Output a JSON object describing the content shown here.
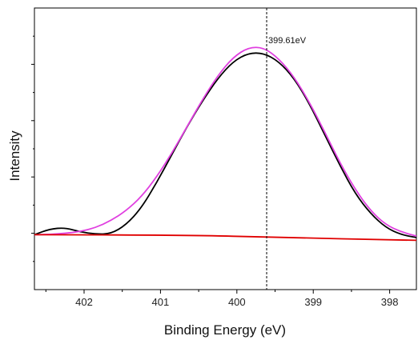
{
  "chart_data": {
    "type": "line",
    "title": "",
    "xlabel": "Binding Energy (eV)",
    "ylabel": "Intensity",
    "x_reversed": true,
    "xlim": [
      402.65,
      397.65
    ],
    "ylim": [
      0,
      100
    ],
    "x_ticks": [
      402,
      401,
      400,
      399,
      398
    ],
    "x_tick_labels": [
      "402",
      "401",
      "400",
      "399",
      "398"
    ],
    "y_ticks_visible_labels": false,
    "grid": false,
    "legend": "none",
    "series": [
      {
        "color": "#000000",
        "x": [
          402.65,
          402.45,
          402.25,
          402.05,
          401.85,
          401.65,
          401.45,
          401.25,
          401.05,
          400.85,
          400.65,
          400.45,
          400.25,
          400.05,
          399.85,
          399.65,
          399.45,
          399.25,
          399.05,
          398.85,
          398.65,
          398.45,
          398.25,
          398.05,
          397.85,
          397.65
        ],
        "y": [
          19.5,
          21.5,
          22.0,
          20.5,
          19.7,
          19.8,
          23.0,
          29.0,
          38.0,
          48.0,
          58.0,
          67.0,
          75.0,
          81.0,
          84.0,
          84.0,
          81.0,
          75.0,
          66.0,
          55.0,
          44.0,
          34.0,
          27.0,
          22.0,
          19.5,
          18.5
        ]
      },
      {
        "color": "#e040e0",
        "x": [
          402.65,
          402.45,
          402.25,
          402.05,
          401.85,
          401.65,
          401.45,
          401.25,
          401.05,
          400.85,
          400.65,
          400.45,
          400.25,
          400.05,
          399.85,
          399.65,
          399.45,
          399.25,
          399.05,
          398.85,
          398.65,
          398.45,
          398.25,
          398.05,
          397.85,
          397.65
        ],
        "y": [
          19.5,
          19.6,
          20.0,
          20.6,
          22.0,
          24.5,
          28.0,
          33.0,
          40.0,
          48.5,
          58.0,
          67.5,
          76.0,
          82.5,
          86.0,
          86.0,
          82.0,
          75.5,
          66.5,
          56.0,
          45.0,
          35.5,
          28.0,
          23.0,
          20.5,
          19.0
        ]
      },
      {
        "color": "#e00000",
        "x": [
          402.65,
          400.5,
          399.6,
          397.65
        ],
        "y": [
          19.5,
          19.3,
          18.6,
          17.5
        ]
      }
    ],
    "annotations": [
      {
        "type": "vline",
        "x": 399.61,
        "style": "dashed",
        "color": "#000000"
      },
      {
        "type": "text",
        "text": "399.61eV",
        "x": 399.61,
        "y": 87.5
      }
    ]
  }
}
